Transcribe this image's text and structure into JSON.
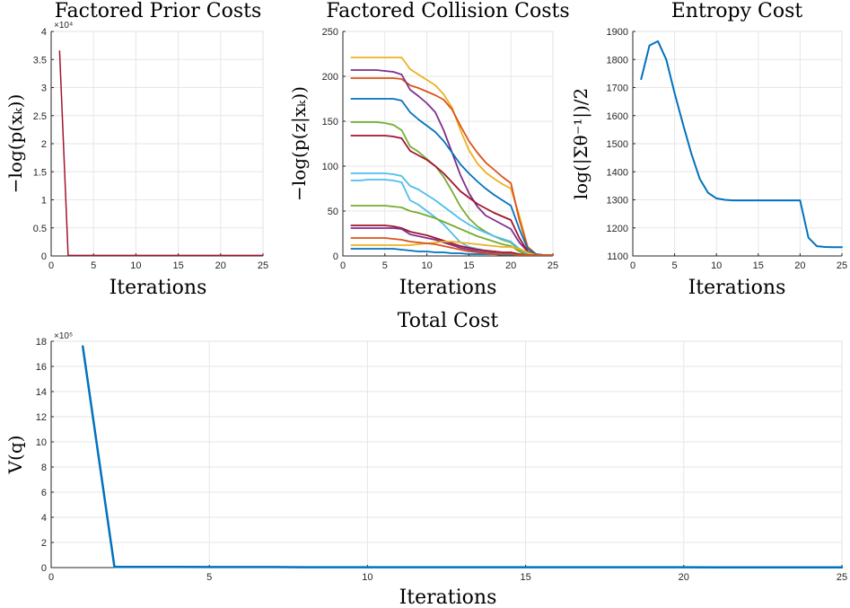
{
  "chart_data": [
    {
      "id": "prior",
      "type": "line",
      "title": "Factored Prior Costs",
      "xlabel": "Iterations",
      "ylabel": "−log(p(xₖ))",
      "exponent_label": "×10⁴",
      "xlim": [
        0,
        25
      ],
      "ylim": [
        0,
        4
      ],
      "xticks": [
        0,
        5,
        10,
        15,
        20,
        25
      ],
      "yticks": [
        0,
        0.5,
        1,
        1.5,
        2,
        2.5,
        3,
        3.5,
        4
      ],
      "series": [
        {
          "name": "prior",
          "color": "#A2142F",
          "x": [
            1,
            2,
            3,
            4,
            5,
            6,
            7,
            8,
            9,
            10,
            11,
            12,
            13,
            14,
            15,
            16,
            17,
            18,
            19,
            20,
            21,
            22,
            23,
            24,
            25
          ],
          "y": [
            3.65,
            0.01,
            0.01,
            0.01,
            0.01,
            0.01,
            0.01,
            0.01,
            0.01,
            0.01,
            0.01,
            0.01,
            0.01,
            0.01,
            0.01,
            0.01,
            0.01,
            0.01,
            0.01,
            0.01,
            0.01,
            0.01,
            0.01,
            0.01,
            0.01
          ]
        }
      ]
    },
    {
      "id": "collision",
      "type": "line",
      "title": "Factored Collision Costs",
      "xlabel": "Iterations",
      "ylabel": "−log(p(z|xₖ))",
      "xlim": [
        0,
        25
      ],
      "ylim": [
        0,
        250
      ],
      "xticks": [
        0,
        5,
        10,
        15,
        20,
        25
      ],
      "yticks": [
        0,
        50,
        100,
        150,
        200,
        250
      ],
      "series": [
        {
          "name": "s1",
          "color": "#EDB120",
          "x": [
            1,
            2,
            3,
            4,
            5,
            6,
            7,
            8,
            9,
            10,
            11,
            12,
            13,
            14,
            15,
            16,
            17,
            18,
            19,
            20,
            21,
            22,
            23,
            24,
            25
          ],
          "y": [
            221,
            221,
            221,
            221,
            221,
            221,
            221,
            208,
            202,
            196,
            190,
            180,
            165,
            140,
            118,
            103,
            93,
            86,
            80,
            75,
            45,
            10,
            2,
            1,
            1
          ]
        },
        {
          "name": "s2",
          "color": "#D95319",
          "x": [
            1,
            2,
            3,
            4,
            5,
            6,
            7,
            8,
            9,
            10,
            11,
            12,
            13,
            14,
            15,
            16,
            17,
            18,
            19,
            20,
            21,
            22,
            23,
            24,
            25
          ],
          "y": [
            198,
            198,
            198,
            198,
            198,
            198,
            197,
            190,
            187,
            183,
            179,
            174,
            163,
            145,
            128,
            115,
            104,
            96,
            88,
            81,
            40,
            10,
            2,
            1,
            1
          ]
        },
        {
          "name": "s3",
          "color": "#7E2F8E",
          "x": [
            1,
            2,
            3,
            4,
            5,
            6,
            7,
            8,
            9,
            10,
            11,
            12,
            13,
            14,
            15,
            16,
            17,
            18,
            19,
            20,
            21,
            22,
            23,
            24,
            25
          ],
          "y": [
            207,
            207,
            207,
            207,
            206,
            205,
            202,
            185,
            178,
            170,
            160,
            140,
            115,
            90,
            70,
            55,
            45,
            40,
            35,
            30,
            15,
            5,
            1,
            1,
            1
          ]
        },
        {
          "name": "s4",
          "color": "#0072BD",
          "x": [
            1,
            2,
            3,
            4,
            5,
            6,
            7,
            8,
            9,
            10,
            11,
            12,
            13,
            14,
            15,
            16,
            17,
            18,
            19,
            20,
            21,
            22,
            23,
            24,
            25
          ],
          "y": [
            175,
            175,
            175,
            175,
            175,
            175,
            173,
            160,
            152,
            145,
            138,
            128,
            115,
            102,
            92,
            83,
            75,
            68,
            62,
            56,
            30,
            8,
            2,
            1,
            1
          ]
        },
        {
          "name": "s5",
          "color": "#77AC30",
          "x": [
            1,
            2,
            3,
            4,
            5,
            6,
            7,
            8,
            9,
            10,
            11,
            12,
            13,
            14,
            15,
            16,
            17,
            18,
            19,
            20,
            21,
            22,
            23,
            24,
            25
          ],
          "y": [
            149,
            149,
            149,
            149,
            148,
            146,
            140,
            122,
            116,
            108,
            100,
            88,
            72,
            55,
            42,
            33,
            27,
            22,
            18,
            15,
            6,
            2,
            1,
            1,
            1
          ]
        },
        {
          "name": "s6",
          "color": "#A2142F",
          "x": [
            1,
            2,
            3,
            4,
            5,
            6,
            7,
            8,
            9,
            10,
            11,
            12,
            13,
            14,
            15,
            16,
            17,
            18,
            19,
            20,
            21,
            22,
            23,
            24,
            25
          ],
          "y": [
            134,
            134,
            134,
            134,
            134,
            133,
            131,
            117,
            112,
            107,
            100,
            92,
            82,
            72,
            65,
            58,
            53,
            48,
            44,
            40,
            20,
            5,
            1,
            1,
            1
          ]
        },
        {
          "name": "s7",
          "color": "#4DBEEE",
          "x": [
            1,
            2,
            3,
            4,
            5,
            6,
            7,
            8,
            9,
            10,
            11,
            12,
            13,
            14,
            15,
            16,
            17,
            18,
            19,
            20,
            21,
            22,
            23,
            24,
            25
          ],
          "y": [
            92,
            92,
            92,
            92,
            92,
            91,
            89,
            78,
            74,
            68,
            62,
            55,
            48,
            41,
            35,
            30,
            26,
            22,
            19,
            16,
            8,
            2,
            1,
            1,
            1
          ]
        },
        {
          "name": "s8",
          "color": "#4DBEEE",
          "x": [
            1,
            2,
            3,
            4,
            5,
            6,
            7,
            8,
            9,
            10,
            11,
            12,
            13,
            14,
            15,
            16,
            17,
            18,
            19,
            20,
            21,
            22,
            23,
            24,
            25
          ],
          "y": [
            84,
            84,
            85,
            85,
            85,
            84,
            82,
            62,
            57,
            50,
            43,
            35,
            25,
            15,
            10,
            8,
            6,
            5,
            4,
            3,
            2,
            1,
            1,
            1,
            1
          ]
        },
        {
          "name": "s9",
          "color": "#77AC30",
          "x": [
            1,
            2,
            3,
            4,
            5,
            6,
            7,
            8,
            9,
            10,
            11,
            12,
            13,
            14,
            15,
            16,
            17,
            18,
            19,
            20,
            21,
            22,
            23,
            24,
            25
          ],
          "y": [
            56,
            56,
            56,
            56,
            56,
            55,
            54,
            50,
            48,
            45,
            42,
            38,
            34,
            30,
            26,
            22,
            19,
            16,
            13,
            11,
            5,
            1,
            1,
            1,
            1
          ]
        },
        {
          "name": "s10",
          "color": "#A2142F",
          "x": [
            1,
            2,
            3,
            4,
            5,
            6,
            7,
            8,
            9,
            10,
            11,
            12,
            13,
            14,
            15,
            16,
            17,
            18,
            19,
            20,
            21,
            22,
            23,
            24,
            25
          ],
          "y": [
            34,
            34,
            34,
            34,
            34,
            33,
            31,
            27,
            25,
            23,
            20,
            17,
            14,
            11,
            9,
            7,
            6,
            5,
            4,
            4,
            2,
            1,
            1,
            1,
            1
          ]
        },
        {
          "name": "s11",
          "color": "#7E2F8E",
          "x": [
            1,
            2,
            3,
            4,
            5,
            6,
            7,
            8,
            9,
            10,
            11,
            12,
            13,
            14,
            15,
            16,
            17,
            18,
            19,
            20,
            21,
            22,
            23,
            24,
            25
          ],
          "y": [
            31,
            31,
            31,
            31,
            31,
            31,
            30,
            24,
            22,
            20,
            18,
            15,
            12,
            9,
            7,
            5,
            4,
            3,
            2,
            2,
            1,
            1,
            1,
            1,
            1
          ]
        },
        {
          "name": "s12",
          "color": "#EDB120",
          "x": [
            1,
            2,
            3,
            4,
            5,
            6,
            7,
            8,
            9,
            10,
            11,
            12,
            13,
            14,
            15,
            16,
            17,
            18,
            19,
            20,
            21,
            22,
            23,
            24,
            25
          ],
          "y": [
            12,
            12,
            12,
            12,
            12,
            12,
            12,
            12,
            13,
            14,
            15,
            16,
            16,
            15,
            14,
            13,
            12,
            11,
            10,
            10,
            8,
            4,
            1,
            1,
            1
          ]
        },
        {
          "name": "s13",
          "color": "#0072BD",
          "x": [
            1,
            2,
            3,
            4,
            5,
            6,
            7,
            8,
            9,
            10,
            11,
            12,
            13,
            14,
            15,
            16,
            17,
            18,
            19,
            20,
            21,
            22,
            23,
            24,
            25
          ],
          "y": [
            8,
            8,
            8,
            8,
            8,
            8,
            7,
            6,
            5,
            5,
            4,
            4,
            3,
            3,
            2,
            2,
            2,
            2,
            1,
            1,
            1,
            1,
            1,
            1,
            1
          ]
        },
        {
          "name": "s14",
          "color": "#D95319",
          "x": [
            1,
            2,
            3,
            4,
            5,
            6,
            7,
            8,
            9,
            10,
            11,
            12,
            13,
            14,
            15,
            16,
            17,
            18,
            19,
            20,
            21,
            22,
            23,
            24,
            25
          ],
          "y": [
            20,
            20,
            20,
            20,
            20,
            19,
            18,
            16,
            15,
            14,
            13,
            11,
            9,
            7,
            5,
            4,
            3,
            2,
            2,
            2,
            1,
            1,
            1,
            1,
            1
          ]
        }
      ]
    },
    {
      "id": "entropy",
      "type": "line",
      "title": "Entropy Cost",
      "xlabel": "Iterations",
      "ylabel": "log(|Σθ⁻¹|)/2",
      "xlim": [
        0,
        25
      ],
      "ylim": [
        1100,
        1900
      ],
      "xticks": [
        0,
        5,
        10,
        15,
        20,
        25
      ],
      "yticks": [
        1100,
        1200,
        1300,
        1400,
        1500,
        1600,
        1700,
        1800,
        1900
      ],
      "series": [
        {
          "name": "entropy",
          "color": "#0072BD",
          "x": [
            1,
            2,
            3,
            4,
            5,
            6,
            7,
            8,
            9,
            10,
            11,
            12,
            13,
            14,
            15,
            16,
            17,
            18,
            19,
            20,
            21,
            22,
            23,
            24,
            25
          ],
          "y": [
            1730,
            1850,
            1865,
            1800,
            1680,
            1570,
            1465,
            1375,
            1325,
            1305,
            1300,
            1298,
            1298,
            1298,
            1298,
            1298,
            1298,
            1298,
            1298,
            1298,
            1165,
            1135,
            1132,
            1131,
            1131
          ]
        }
      ]
    },
    {
      "id": "total",
      "type": "line",
      "title": "Total Cost",
      "xlabel": "Iterations",
      "ylabel": "V(q)",
      "exponent_label": "×10⁵",
      "xlim": [
        0,
        25
      ],
      "ylim": [
        0,
        18
      ],
      "xticks": [
        0,
        5,
        10,
        15,
        20,
        25
      ],
      "yticks": [
        0,
        2,
        4,
        6,
        8,
        10,
        12,
        14,
        16,
        18
      ],
      "series": [
        {
          "name": "total",
          "color": "#0072BD",
          "x": [
            1,
            2,
            3,
            4,
            5,
            6,
            7,
            8,
            9,
            10,
            11,
            12,
            13,
            14,
            15,
            16,
            17,
            18,
            19,
            20,
            21,
            22,
            23,
            24,
            25
          ],
          "y": [
            17.6,
            0.05,
            0.05,
            0.05,
            0.04,
            0.04,
            0.04,
            0.03,
            0.03,
            0.03,
            0.03,
            0.03,
            0.03,
            0.03,
            0.03,
            0.03,
            0.03,
            0.03,
            0.03,
            0.03,
            0.02,
            0.02,
            0.02,
            0.02,
            0.02
          ]
        }
      ]
    }
  ]
}
